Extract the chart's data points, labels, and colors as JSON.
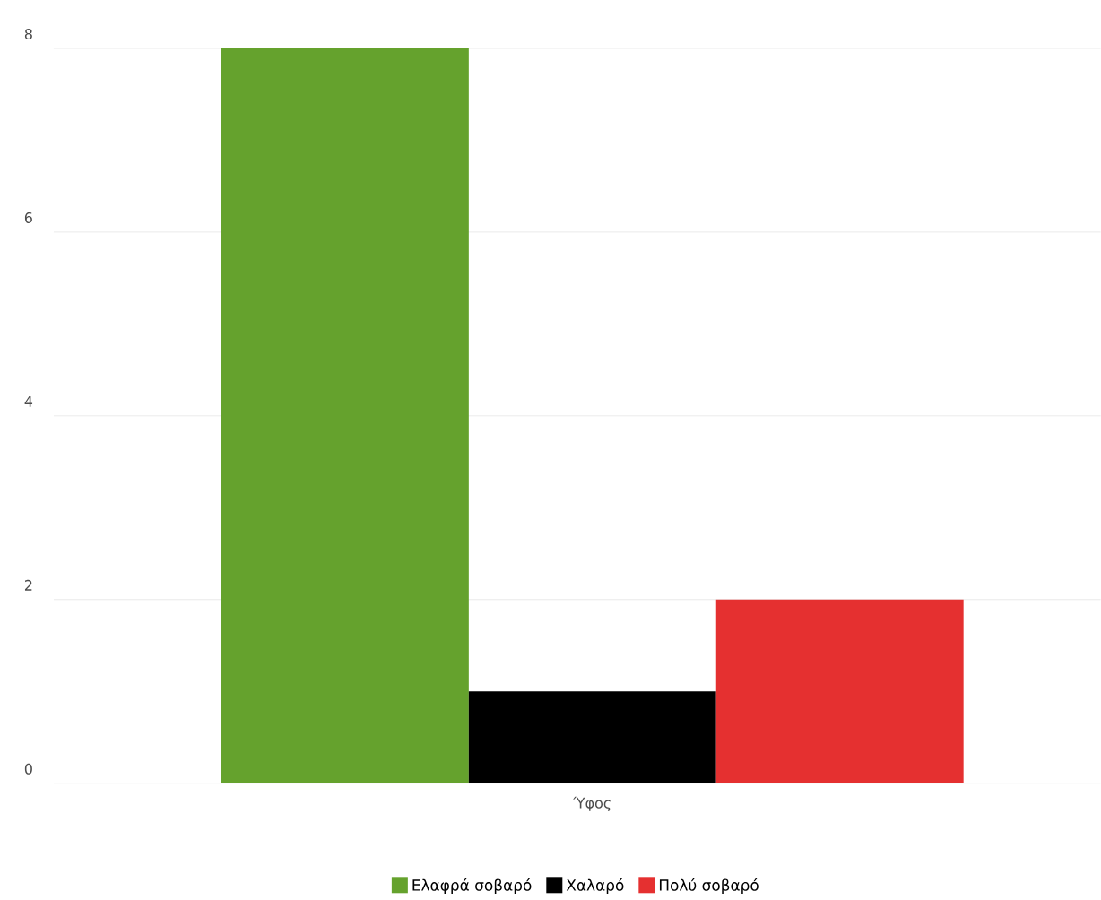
{
  "chart_data": {
    "type": "bar",
    "categories": [
      "Ύφος"
    ],
    "series": [
      {
        "name": "Ελαφρά σοβαρό",
        "color": "#65a22d",
        "values": [
          8
        ]
      },
      {
        "name": "Χαλαρό",
        "color": "#000000",
        "values": [
          1
        ]
      },
      {
        "name": "Πολύ σοβαρό",
        "color": "#e53030",
        "values": [
          2
        ]
      }
    ],
    "ylim": [
      0,
      8
    ],
    "yticks": [
      0,
      2,
      4,
      6,
      8
    ],
    "grid": "y",
    "legend": "bottom"
  }
}
